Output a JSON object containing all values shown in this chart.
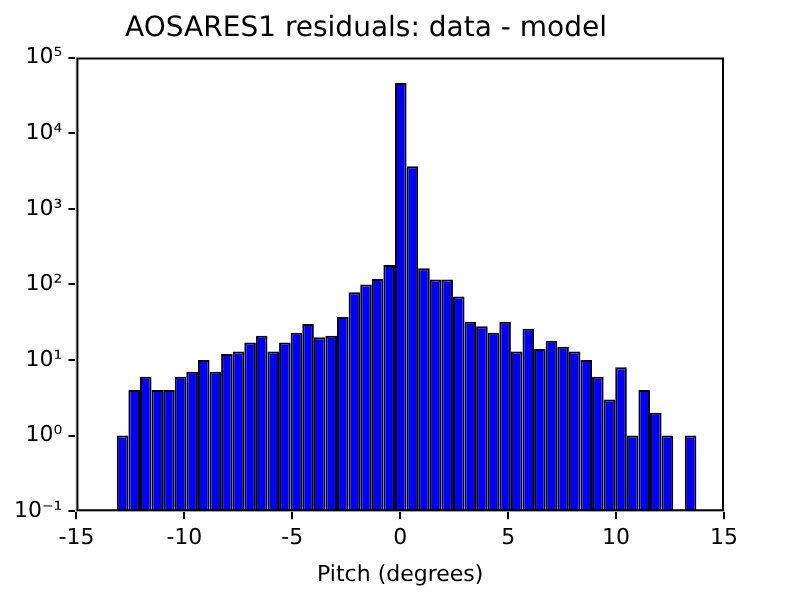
{
  "chart_data": {
    "type": "histogram",
    "title": "AOSARES1 residuals: data - model",
    "xlabel": "Pitch (degrees)",
    "bins": [
      -13.13,
      -12.593,
      -12.056,
      -11.519,
      -10.982,
      -10.445,
      -9.908,
      -9.371,
      -8.834,
      -8.297,
      -7.76,
      -7.223,
      -6.686,
      -6.149,
      -5.612,
      -5.075,
      -4.538,
      -4.001,
      -3.464,
      -2.927,
      -2.39,
      -1.853,
      -1.316,
      -0.779,
      -0.242,
      0.295,
      0.832,
      1.369,
      1.906,
      2.443,
      2.98,
      3.517,
      4.054,
      4.591,
      5.128,
      5.665,
      6.202,
      6.739,
      7.276,
      7.813,
      8.35,
      8.887,
      9.424,
      9.961,
      10.498,
      11.035,
      11.572,
      12.109,
      12.646,
      13.183,
      13.72
    ],
    "values": [
      1,
      4,
      6,
      4,
      4,
      6,
      7,
      10,
      7,
      12,
      13,
      17,
      21,
      13,
      17,
      23,
      30,
      20,
      21,
      37,
      79,
      100,
      118,
      180,
      46000,
      3650,
      163,
      116,
      116,
      69,
      32,
      28,
      23,
      32,
      13,
      26,
      14,
      18,
      15,
      13,
      10,
      6,
      3,
      8,
      1,
      4,
      2,
      1,
      null,
      1
    ],
    "color": "#0000ff",
    "log": "y",
    "grid": false,
    "xlim": [
      -15,
      15
    ],
    "xticks": [
      -15,
      -10,
      -5,
      0,
      5,
      10,
      15
    ],
    "ylim": [
      0.1,
      100000
    ],
    "yticks": [
      {
        "value": 0.1,
        "label": "10⁻¹"
      },
      {
        "value": 1,
        "label": "10⁰"
      },
      {
        "value": 10,
        "label": "10¹"
      },
      {
        "value": 100,
        "label": "10²"
      },
      {
        "value": 1000,
        "label": "10³"
      },
      {
        "value": 10000,
        "label": "10⁴"
      },
      {
        "value": 100000,
        "label": "10⁵"
      }
    ]
  }
}
